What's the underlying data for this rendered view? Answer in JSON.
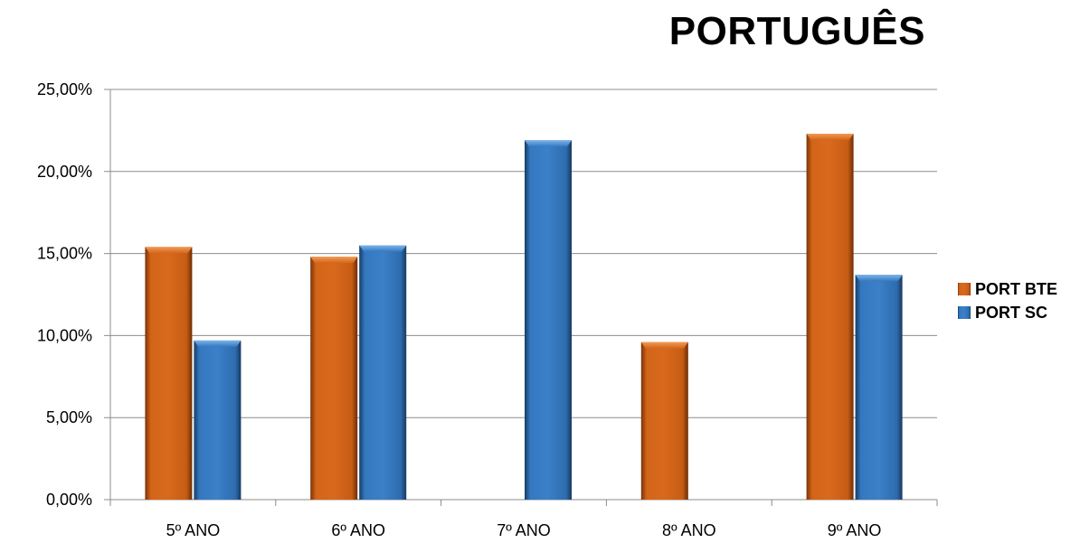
{
  "chart_data": {
    "type": "bar",
    "title": "PORTUGUÊS",
    "categories": [
      "5º ANO",
      "6º ANO",
      "7º ANO",
      "8º ANO",
      "9º ANO"
    ],
    "series": [
      {
        "name": "PORT BTE",
        "color": "#D3651A",
        "values": [
          15.4,
          14.8,
          null,
          9.6,
          22.3
        ]
      },
      {
        "name": "PORT SC",
        "color": "#3478C0",
        "values": [
          9.7,
          15.5,
          21.9,
          null,
          13.7
        ]
      }
    ],
    "ylim": [
      0,
      25
    ],
    "yticks": [
      "0,00%",
      "5,00%",
      "10,00%",
      "15,00%",
      "20,00%",
      "25,00%"
    ],
    "grid": true,
    "legend": "right"
  }
}
